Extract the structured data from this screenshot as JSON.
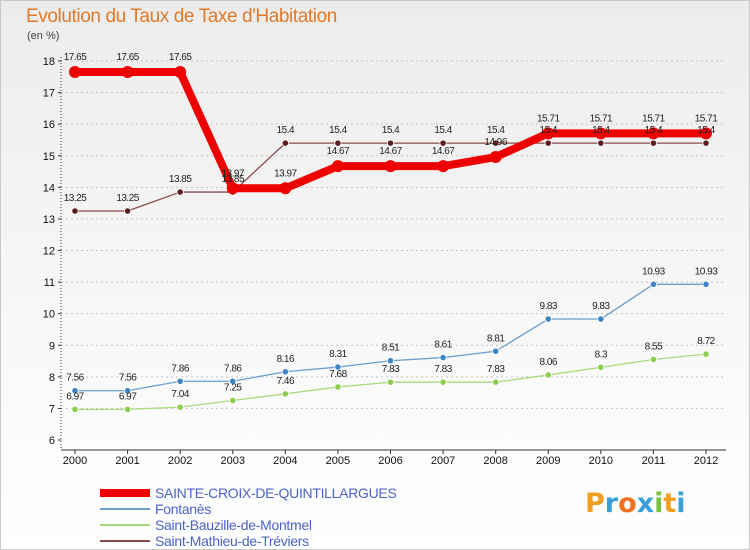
{
  "header": {
    "title": "Evolution du Taux de Taxe d'Habitation",
    "unit": "(en %)"
  },
  "brand": {
    "logo_text": "Proxiti"
  },
  "colors": {
    "grid": "#c4c4c4",
    "axis": "#333333",
    "legend_text": "#4a62c9"
  },
  "chart_data": {
    "type": "line",
    "title": "Evolution du Taux de Taxe d'Habitation",
    "ylabel": "(en %)",
    "xlabel": "",
    "categories": [
      "2000",
      "2001",
      "2002",
      "2003",
      "2004",
      "2005",
      "2006",
      "2007",
      "2008",
      "2009",
      "2010",
      "2011",
      "2012"
    ],
    "ylim": [
      6,
      18
    ],
    "yticks": [
      6,
      7,
      8,
      9,
      10,
      11,
      12,
      13,
      14,
      15,
      16,
      17,
      18
    ],
    "grid": "horizontal dashed",
    "legend_position": "bottom-left",
    "series": [
      {
        "name": "SAINTE-CROIX-DE-QUINTILLARGUES",
        "color": "#ee0000",
        "marker_color": "#ee0000",
        "line_width": 8,
        "marker_radius": 6,
        "values": [
          17.65,
          17.65,
          17.65,
          13.97,
          13.97,
          14.67,
          14.67,
          14.67,
          14.96,
          15.71,
          15.71,
          15.71,
          15.71
        ],
        "labels": [
          "17.65",
          "17.65",
          "17.65",
          "13.97",
          "13.97",
          "14.67",
          "14.67",
          "14.67",
          "14.96",
          "15.71",
          "15.71",
          "15.71",
          "15.71"
        ]
      },
      {
        "name": "Fontanès",
        "color": "#6a9fd0",
        "marker_color": "#3f85c3",
        "line_width": 1.3,
        "marker_radius": 3.2,
        "values": [
          7.56,
          7.56,
          7.86,
          7.86,
          8.16,
          8.31,
          8.51,
          8.61,
          8.81,
          9.83,
          9.83,
          10.93,
          10.93
        ],
        "labels": [
          "7.56",
          "7.56",
          "7.86",
          "7.86",
          "8.16",
          "8.31",
          "8.51",
          "8.61",
          "8.81",
          "9.83",
          "9.83",
          "10.93",
          "10.93"
        ]
      },
      {
        "name": "Saint-Bauzille-de-Montmel",
        "color": "#a8da7a",
        "marker_color": "#8ccc4f",
        "line_width": 1.3,
        "marker_radius": 3.2,
        "values": [
          6.97,
          6.97,
          7.04,
          7.25,
          7.46,
          7.68,
          7.83,
          7.83,
          7.83,
          8.06,
          8.3,
          8.55,
          8.72
        ],
        "labels": [
          "6.97",
          "6.97",
          "7.04",
          "7.25",
          "7.46",
          "7.68",
          "7.83",
          "7.83",
          "7.83",
          "8.06",
          "8.3",
          "8.55",
          "8.72"
        ]
      },
      {
        "name": "Saint-Mathieu-de-Tréviers",
        "color": "#8a4a4a",
        "marker_color": "#5a1e1e",
        "line_width": 1.3,
        "marker_radius": 3.2,
        "values": [
          13.25,
          13.25,
          13.85,
          13.85,
          15.4,
          15.4,
          15.4,
          15.4,
          15.4,
          15.4,
          15.4,
          15.4,
          15.4
        ],
        "labels": [
          "13.25",
          "13.25",
          "13.85",
          "13.85",
          "15.4",
          "15.4",
          "15.4",
          "15.4",
          "15.4",
          "15.4",
          "15.4",
          "15.4",
          "15.4"
        ]
      }
    ]
  }
}
